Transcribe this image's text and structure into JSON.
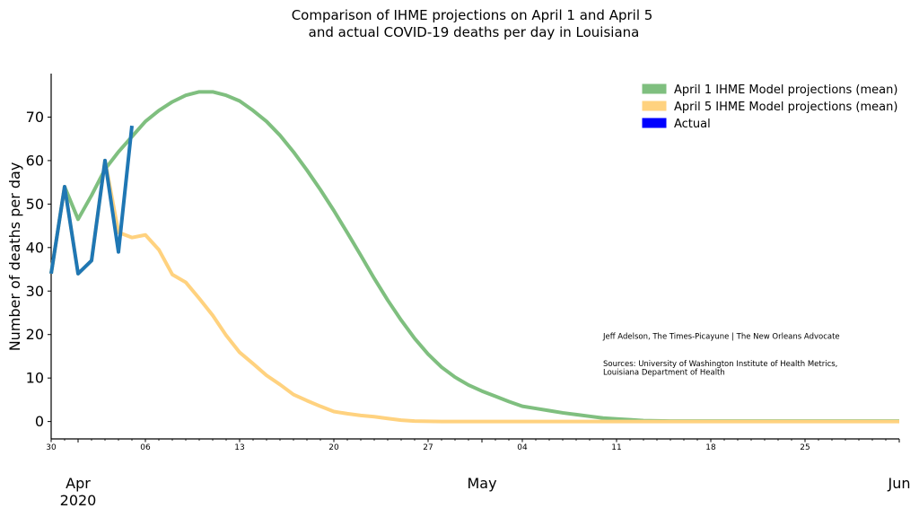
{
  "chart_data": {
    "type": "line",
    "title": [
      "Comparison of IHME projections on April 1 and April 5",
      "and actual COVID-19 deaths per day in Louisiana"
    ],
    "xlabel": "",
    "ylabel": "Number of deaths per day",
    "x_start": "2020-03-30",
    "x_end": "2020-06-01",
    "ylim": [
      -4,
      80
    ],
    "y_ticks": [
      0,
      10,
      20,
      30,
      40,
      50,
      60,
      70
    ],
    "x_minor_ticks": [
      {
        "date": "2020-03-30",
        "label": "30"
      },
      {
        "date": "2020-04-06",
        "label": "06"
      },
      {
        "date": "2020-04-13",
        "label": "13"
      },
      {
        "date": "2020-04-20",
        "label": "20"
      },
      {
        "date": "2020-04-27",
        "label": "27"
      },
      {
        "date": "2020-05-04",
        "label": "04"
      },
      {
        "date": "2020-05-11",
        "label": "11"
      },
      {
        "date": "2020-05-18",
        "label": "18"
      },
      {
        "date": "2020-05-25",
        "label": "25"
      }
    ],
    "x_major_ticks": [
      {
        "date": "2020-04-01",
        "label": "Apr",
        "sublabel": "2020"
      },
      {
        "date": "2020-05-01",
        "label": "May",
        "sublabel": ""
      },
      {
        "date": "2020-06-01",
        "label": "Jun",
        "sublabel": ""
      }
    ],
    "grid": false,
    "legend_position": "top-right",
    "series": [
      {
        "name": "April 1 IHME Model projections (mean)",
        "color": "#7fbf7f",
        "start_date": "2020-03-30",
        "values": [
          34,
          54,
          46.5,
          52,
          58,
          62,
          65.5,
          69,
          71.5,
          73.5,
          75,
          75.8,
          75.8,
          75,
          73.7,
          71.5,
          69,
          65.8,
          62,
          57.8,
          53.3,
          48.5,
          43.4,
          38.2,
          32.9,
          27.9,
          23.3,
          19.1,
          15.5,
          12.5,
          10.2,
          8.4,
          7,
          5.8,
          4.6,
          3.5,
          3,
          2.5,
          2,
          1.6,
          1.2,
          0.8,
          0.6,
          0.4,
          0.2,
          0.15,
          0.1,
          0.1,
          0.1,
          0.1,
          0.1,
          0.1,
          0.1,
          0.1,
          0.1,
          0.1,
          0.1,
          0.1,
          0.1,
          0.1,
          0.1,
          0.1,
          0.1,
          0.1
        ]
      },
      {
        "name": "April 5 IHME Model projections (mean)",
        "color": "#ffd27f",
        "start_date": "2020-03-30",
        "values": [
          34,
          54,
          34,
          37,
          60,
          43.5,
          42.3,
          42.9,
          39.5,
          33.8,
          32,
          28.3,
          24.4,
          19.8,
          15.9,
          13.3,
          10.6,
          8.5,
          6.2,
          4.8,
          3.5,
          2.3,
          1.8,
          1.4,
          1.1,
          0.7,
          0.3,
          0.1,
          0.05,
          0,
          0,
          0,
          0,
          0,
          0,
          0,
          0,
          0,
          0,
          0,
          0,
          0,
          0,
          0,
          0,
          0,
          0,
          0,
          0,
          0,
          0,
          0,
          0,
          0,
          0,
          0,
          0,
          0,
          0,
          0,
          0,
          0,
          0,
          0
        ]
      },
      {
        "name": "Actual",
        "color": "#1f77b4",
        "legend_color": "#0000ff",
        "start_date": "2020-03-30",
        "values": [
          34,
          54,
          34,
          37,
          60,
          39,
          68
        ]
      }
    ],
    "annotations": [
      {
        "text": "Jeff Adelson, The Times-Picayune | The New Orleans Advocate",
        "x": "2020-05-10",
        "y": 19
      },
      {
        "text": "Sources: University of Washington Institute of Health Metrics,",
        "x": "2020-05-10",
        "y": 12.7
      },
      {
        "text": "Louisiana Department of Health",
        "x": "2020-05-10",
        "y": 10.8
      }
    ]
  }
}
